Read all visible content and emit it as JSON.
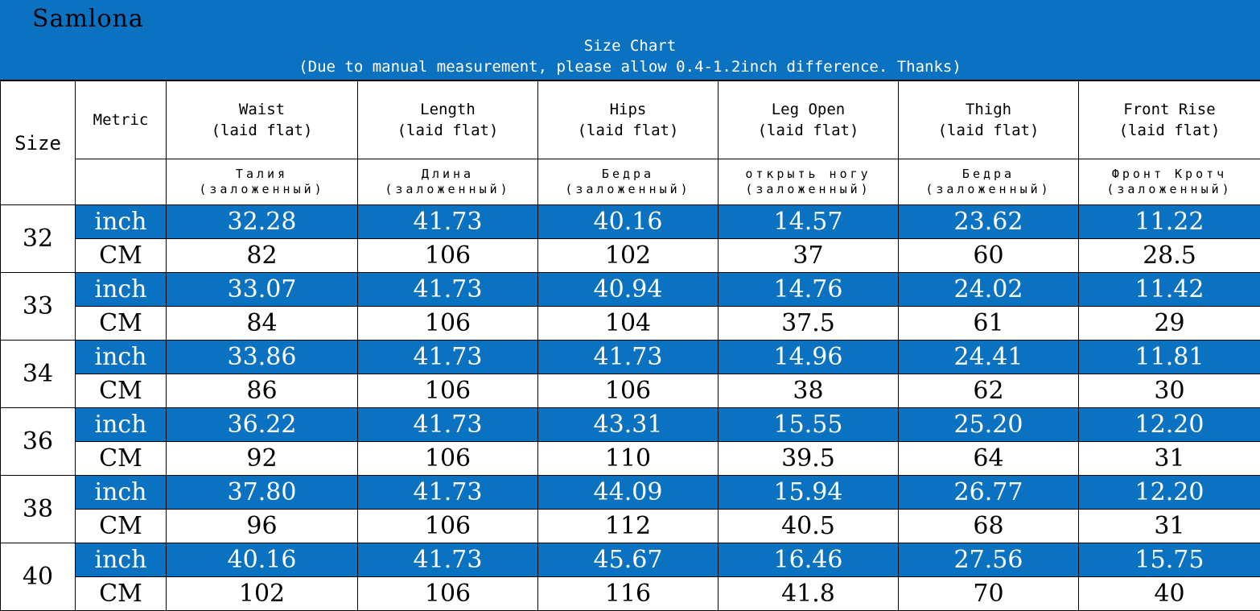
{
  "brand": "Samlona",
  "title": "Size Chart",
  "subtitle": "(Due to manual measurement, please allow 0.4-1.2inch difference. Thanks)",
  "colors": {
    "accent_blue": "#0b72c2",
    "inch_text": "#ffffff",
    "cm_text": "#000000"
  },
  "header": {
    "size": "Size",
    "metric": "Metric",
    "columns": [
      {
        "name": "Waist",
        "sub": "(laid flat)",
        "ru_name": "Талия",
        "ru_sub": "(заложенный)"
      },
      {
        "name": "Length",
        "sub": "(laid flat)",
        "ru_name": "Длина",
        "ru_sub": "(заложенный)"
      },
      {
        "name": "Hips",
        "sub": "(laid flat)",
        "ru_name": "Бедра",
        "ru_sub": "(заложенный)"
      },
      {
        "name": "Leg Open",
        "sub": "(laid flat)",
        "ru_name": "открыть ногу",
        "ru_sub": "(заложенный)"
      },
      {
        "name": "Thigh",
        "sub": "(laid flat)",
        "ru_name": "Бедра",
        "ru_sub": "(заложенный)"
      },
      {
        "name": "Front Rise",
        "sub": "(laid flat)",
        "ru_name": "Фронт Кротч",
        "ru_sub": "(заложенный)"
      }
    ]
  },
  "rows": [
    {
      "size": "32",
      "inch_label": "inch",
      "cm_label": "CM",
      "inch": [
        "32.28",
        "41.73",
        "40.16",
        "14.57",
        "23.62",
        "11.22"
      ],
      "cm": [
        "82",
        "106",
        "102",
        "37",
        "60",
        "28.5"
      ]
    },
    {
      "size": "33",
      "inch_label": "inch",
      "cm_label": "CM",
      "inch": [
        "33.07",
        "41.73",
        "40.94",
        "14.76",
        "24.02",
        "11.42"
      ],
      "cm": [
        "84",
        "106",
        "104",
        "37.5",
        "61",
        "29"
      ]
    },
    {
      "size": "34",
      "inch_label": "inch",
      "cm_label": "CM",
      "inch": [
        "33.86",
        "41.73",
        "41.73",
        "14.96",
        "24.41",
        "11.81"
      ],
      "cm": [
        "86",
        "106",
        "106",
        "38",
        "62",
        "30"
      ]
    },
    {
      "size": "36",
      "inch_label": "inch",
      "cm_label": "CM",
      "inch": [
        "36.22",
        "41.73",
        "43.31",
        "15.55",
        "25.20",
        "12.20"
      ],
      "cm": [
        "92",
        "106",
        "110",
        "39.5",
        "64",
        "31"
      ]
    },
    {
      "size": "38",
      "inch_label": "inch",
      "cm_label": "CM",
      "inch": [
        "37.80",
        "41.73",
        "44.09",
        "15.94",
        "26.77",
        "12.20"
      ],
      "cm": [
        "96",
        "106",
        "112",
        "40.5",
        "68",
        "31"
      ]
    },
    {
      "size": "40",
      "inch_label": "inch",
      "cm_label": "CM",
      "inch": [
        "40.16",
        "41.73",
        "45.67",
        "16.46",
        "27.56",
        "15.75"
      ],
      "cm": [
        "102",
        "106",
        "116",
        "41.8",
        "70",
        "40"
      ]
    }
  ]
}
